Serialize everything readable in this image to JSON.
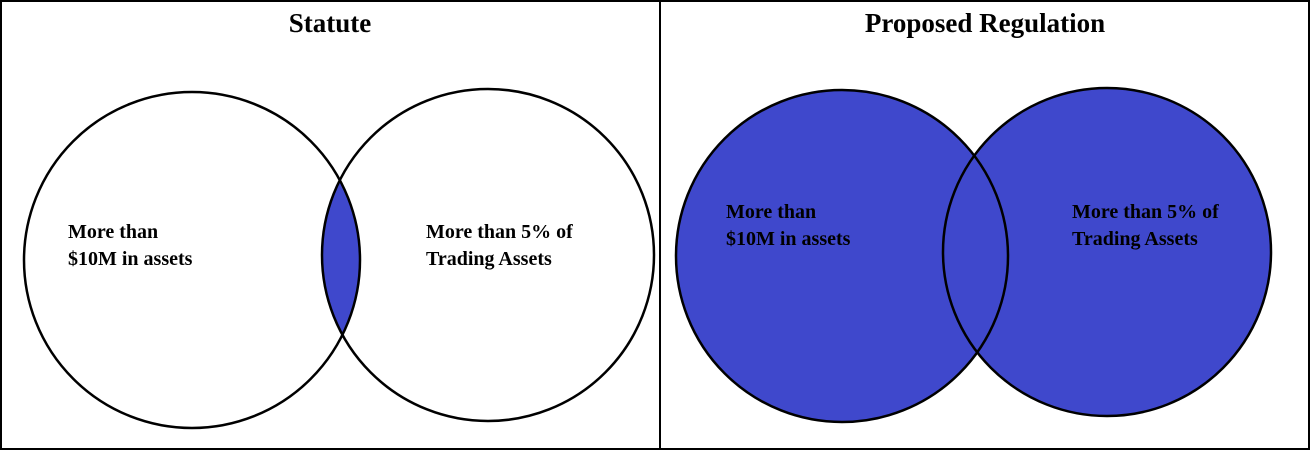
{
  "panels": [
    {
      "title": "Statute",
      "circle_a": {
        "label_lines": [
          "More than",
          "$10M in assets"
        ]
      },
      "circle_b": {
        "label_lines": [
          "More than 5% of",
          "Trading Assets"
        ]
      },
      "highlight": "intersection"
    },
    {
      "title": "Proposed Regulation",
      "circle_a": {
        "label_lines": [
          "More than",
          "$10M in assets"
        ]
      },
      "circle_b": {
        "label_lines": [
          "More than 5% of",
          "Trading Assets"
        ]
      },
      "highlight": "union"
    }
  ],
  "colors": {
    "fill": "#3f48cc",
    "outline": "#000000",
    "background": "#ffffff"
  }
}
